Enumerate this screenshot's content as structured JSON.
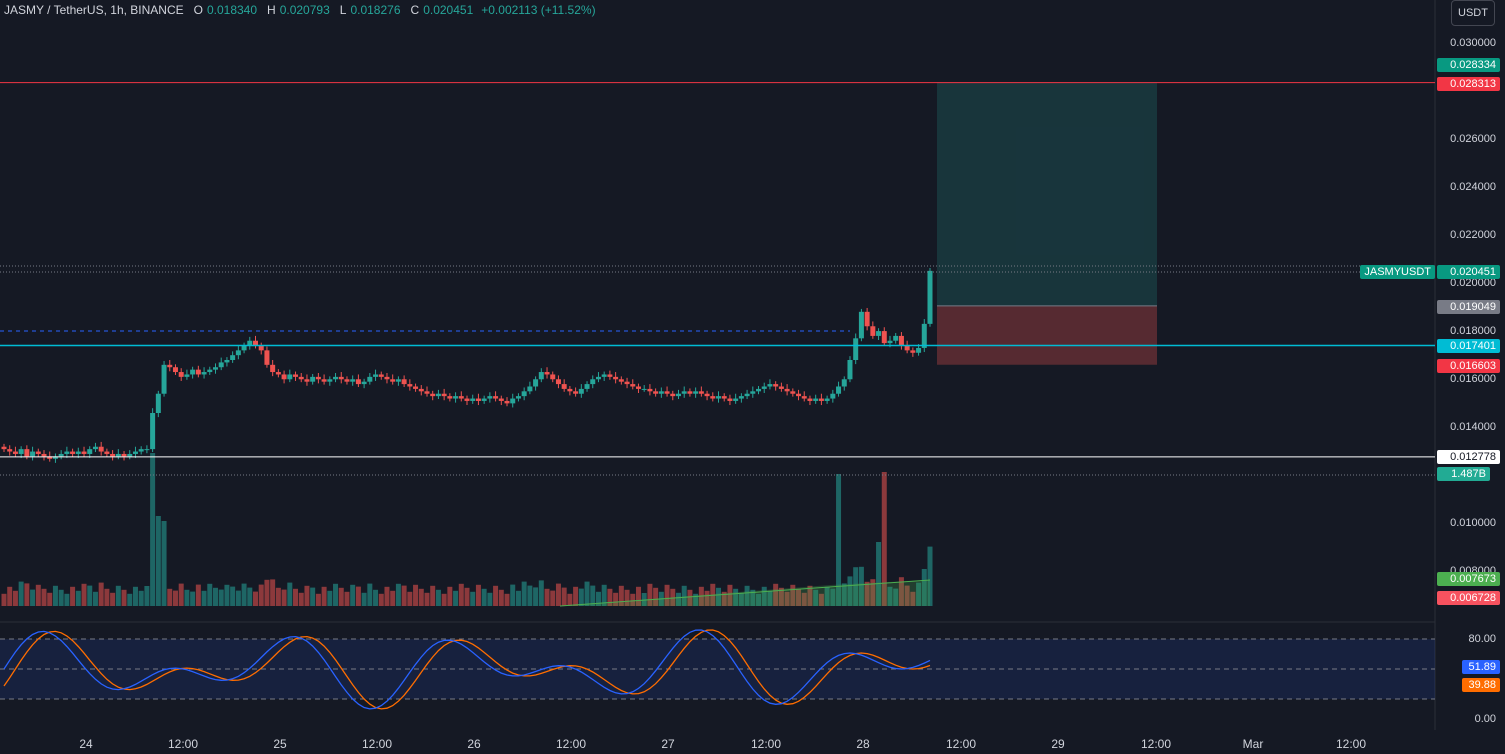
{
  "header": {
    "symbol": "JASMY / TetherUS, 1h, BINANCE",
    "open_label": "O",
    "open": "0.018340",
    "high_label": "H",
    "high": "0.020793",
    "low_label": "L",
    "low": "0.018276",
    "close_label": "C",
    "close": "0.020451",
    "change": "+0.002113 (+11.52%)"
  },
  "currency_button": "USDT",
  "symbol_tag": "JASMYUSDT",
  "colors": {
    "background": "#151924",
    "up": "#26a69a",
    "down": "#ef5350",
    "stoch_k": "#2962ff",
    "stoch_d": "#ff6d00",
    "hline_cyan": "#00bcd4",
    "hline_red": "#f23645"
  },
  "price_axis": {
    "ticks": [
      "0.030000",
      "0.026000",
      "0.024000",
      "0.022000",
      "0.020000",
      "0.018000",
      "0.016000",
      "0.014000",
      "0.010000",
      "0.008000"
    ],
    "labels": {
      "target": "0.028334",
      "red_line": "0.028313",
      "last": "0.020451",
      "entry": "0.019049",
      "cyan_line": "0.017401",
      "stop": "0.016603",
      "white_line": "0.012778",
      "volume": "1.487B",
      "vol_ma1": "0.007673",
      "vol_ma2": "0.006728"
    }
  },
  "oscillator_axis": {
    "ticks": [
      "80.00",
      "0.00"
    ],
    "k_value": "51.89",
    "d_value": "39.88"
  },
  "time_axis": [
    "24",
    "12:00",
    "25",
    "12:00",
    "26",
    "12:00",
    "27",
    "12:00",
    "28",
    "12:00",
    "29",
    "12:00",
    "Mar",
    "12:00"
  ],
  "chart_data": {
    "type": "candlestick",
    "interval": "1h",
    "y_range": [
      0.007,
      0.0305
    ],
    "closes": [
      0.0131,
      0.013,
      0.0129,
      0.0131,
      0.0128,
      0.013,
      0.0129,
      0.0128,
      0.0127,
      0.0128,
      0.0129,
      0.013,
      0.0129,
      0.013,
      0.0129,
      0.0131,
      0.0132,
      0.013,
      0.0129,
      0.0128,
      0.0129,
      0.0128,
      0.0129,
      0.013,
      0.0131,
      0.0131,
      0.0146,
      0.0154,
      0.0166,
      0.0165,
      0.0163,
      0.0161,
      0.0162,
      0.0164,
      0.0162,
      0.0163,
      0.0164,
      0.0165,
      0.0167,
      0.0168,
      0.017,
      0.0172,
      0.0174,
      0.0176,
      0.0174,
      0.0172,
      0.0166,
      0.0163,
      0.0162,
      0.016,
      0.0162,
      0.0161,
      0.016,
      0.0159,
      0.0161,
      0.016,
      0.0159,
      0.016,
      0.0161,
      0.016,
      0.0159,
      0.016,
      0.0158,
      0.0159,
      0.0161,
      0.0162,
      0.0161,
      0.016,
      0.0159,
      0.016,
      0.0158,
      0.0157,
      0.0156,
      0.0155,
      0.0154,
      0.0153,
      0.0154,
      0.0153,
      0.0152,
      0.0153,
      0.0152,
      0.0151,
      0.0152,
      0.0151,
      0.0152,
      0.0153,
      0.0152,
      0.0151,
      0.015,
      0.0152,
      0.0153,
      0.0155,
      0.0157,
      0.016,
      0.0163,
      0.0162,
      0.016,
      0.0158,
      0.0156,
      0.0155,
      0.0154,
      0.0156,
      0.0158,
      0.016,
      0.0161,
      0.0162,
      0.0161,
      0.016,
      0.0159,
      0.0158,
      0.0157,
      0.0156,
      0.0156,
      0.0155,
      0.0154,
      0.0155,
      0.0154,
      0.0153,
      0.0154,
      0.0155,
      0.0154,
      0.0155,
      0.0154,
      0.0153,
      0.0152,
      0.0153,
      0.0152,
      0.0151,
      0.0152,
      0.0153,
      0.0154,
      0.0155,
      0.0156,
      0.0157,
      0.0158,
      0.0157,
      0.0156,
      0.0155,
      0.0154,
      0.0153,
      0.0152,
      0.0151,
      0.0152,
      0.0151,
      0.0152,
      0.0154,
      0.0157,
      0.016,
      0.0168,
      0.0177,
      0.0188,
      0.0182,
      0.0178,
      0.018,
      0.0175,
      0.0176,
      0.0178,
      0.0174,
      0.0172,
      0.0171,
      0.0173,
      0.0183,
      0.0205
    ]
  }
}
